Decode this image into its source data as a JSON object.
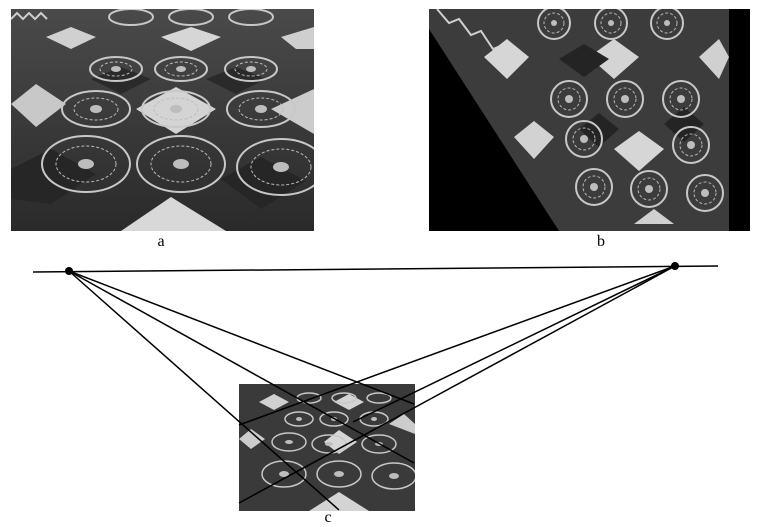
{
  "figure": {
    "panels": [
      {
        "id": "a",
        "caption": "a"
      },
      {
        "id": "b",
        "caption": "b"
      },
      {
        "id": "c",
        "caption": "c"
      }
    ]
  },
  "colors": {
    "tile_light": "#d8d8d8",
    "tile_dark": "#3a3a3a",
    "tile_mid": "#5a5a5a",
    "rosette": "#c8c8c8",
    "line": "#000000"
  }
}
